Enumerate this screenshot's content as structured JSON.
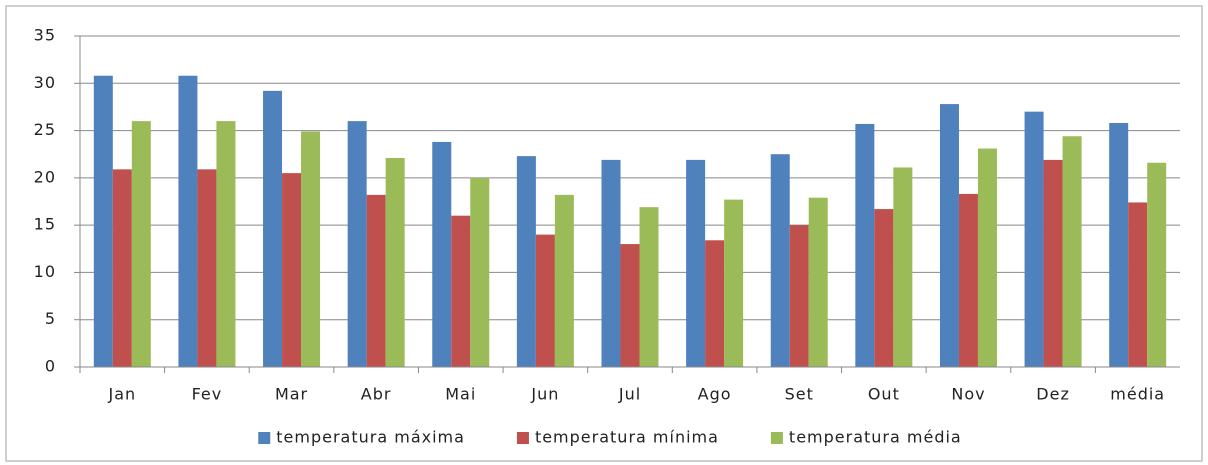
{
  "chart_data": {
    "type": "bar",
    "categories": [
      "Jan",
      "Fev",
      "Mar",
      "Abr",
      "Mai",
      "Jun",
      "Jul",
      "Ago",
      "Set",
      "Out",
      "Nov",
      "Dez",
      "média"
    ],
    "series": [
      {
        "name": "temperatura máxima",
        "color": "#4f81bd",
        "values": [
          30.8,
          30.8,
          29.2,
          26,
          23.8,
          22.3,
          21.9,
          21.9,
          22.5,
          25.7,
          27.8,
          27,
          25.8
        ]
      },
      {
        "name": "temperatura mínima",
        "color": "#c0504d",
        "values": [
          20.9,
          20.9,
          20.5,
          18.2,
          16,
          14,
          13,
          13.4,
          15,
          16.7,
          18.3,
          21.9,
          17.4
        ]
      },
      {
        "name": "temperatura média",
        "color": "#9bbb59",
        "values": [
          26,
          26,
          24.9,
          22.1,
          20,
          18.2,
          16.9,
          17.7,
          17.9,
          21.1,
          23.1,
          24.4,
          21.6
        ]
      }
    ],
    "ylim": [
      0,
      35
    ],
    "yticks": [
      0,
      5,
      10,
      15,
      20,
      25,
      30,
      35
    ],
    "grid": true,
    "legend": "bottom"
  }
}
